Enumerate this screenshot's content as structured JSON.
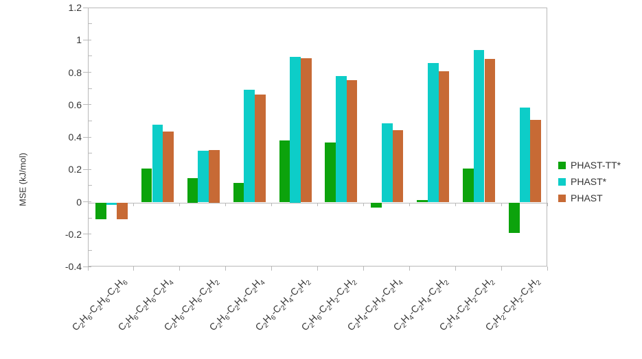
{
  "chart_data": {
    "type": "bar",
    "title": "",
    "xlabel": "",
    "ylabel": "MSE (kJ/mol)",
    "ylim": [
      -0.4,
      1.2
    ],
    "ytick_labels": [
      "1.2",
      "1",
      "0.8",
      "0.6",
      "0.4",
      "0.2",
      "0",
      "-0.2",
      "-0.4"
    ],
    "ytick_values": [
      1.2,
      1.0,
      0.8,
      0.6,
      0.4,
      0.2,
      0.0,
      -0.2,
      -0.4
    ],
    "minor_tick_step": 0.1,
    "grid": false,
    "legend_position": "right",
    "categories": [
      "C2H6-C2H6-C2H6",
      "C2H6-C2H6-C2H4",
      "C2H6-C2H6-C2H2",
      "C2H6-C2H4-C2H4",
      "C2H6-C2H4-C2H2",
      "C2H6-C2H2-C2H2",
      "C2H4-C2H4-C2H4",
      "C2H4-C2H4-C2H2",
      "C2H4-C2H2-C2H2",
      "C2H2-C2H2-C2H2"
    ],
    "series": [
      {
        "name": "PHAST-TT*",
        "color": "#0ca30c",
        "values": [
          -0.105,
          0.21,
          0.15,
          0.12,
          0.385,
          0.37,
          -0.03,
          0.015,
          0.21,
          -0.19
        ]
      },
      {
        "name": "PHAST*",
        "color": "#0dcdc8",
        "values": [
          -0.015,
          0.48,
          0.32,
          0.695,
          0.9,
          0.78,
          0.49,
          0.86,
          0.94,
          0.585
        ]
      },
      {
        "name": "PHAST",
        "color": "#c76a35",
        "values": [
          -0.105,
          0.44,
          0.325,
          0.665,
          0.89,
          0.755,
          0.445,
          0.81,
          0.885,
          0.51
        ]
      }
    ]
  },
  "colors": {
    "axis": "#b9b9b9",
    "text": "#333333",
    "background": "#ffffff"
  }
}
